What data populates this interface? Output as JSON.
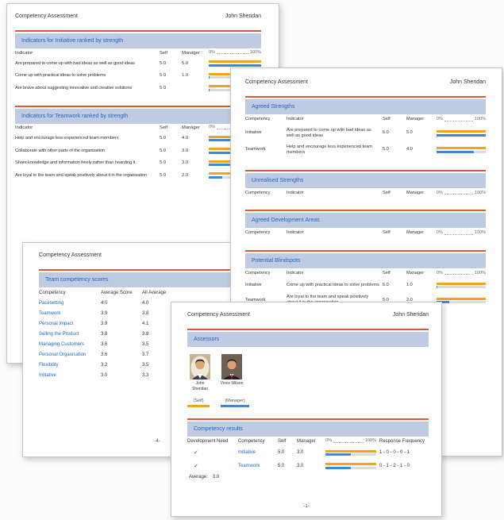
{
  "report": {
    "title": "Competency Assessment",
    "person": "John Sheridan"
  },
  "scale": {
    "left": "0%",
    "right": "100%"
  },
  "colors": {
    "self_bar": "#F6A21C",
    "manager_bar": "#3E86D8",
    "section_band_bg": "#BFCBE2",
    "section_title_text": "#2565C2",
    "section_top_rule": "#E0582E"
  },
  "pages": {
    "indicators": {
      "title": "Competency Assessment",
      "person": "John Sheridan",
      "sections": [
        {
          "title": "Indicators for Initiative ranked by strength",
          "columns": {
            "indicator": "Indicator",
            "self": "Self",
            "manager": "Manager"
          },
          "rows": [
            {
              "indicator": "Are prepared to come up with bad ideas as well as good ideas",
              "self": "5.0",
              "manager": "5.0"
            },
            {
              "indicator": "Come up with practical ideas to solve problems",
              "self": "5.0",
              "manager": "1.0"
            },
            {
              "indicator": "Are brave about suggesting innovative and creative solutions",
              "self": "5.0",
              "manager": ""
            }
          ]
        },
        {
          "title": "Indicators for Teamwork ranked by strength",
          "columns": {
            "indicator": "Indicator",
            "self": "Self",
            "manager": "Manager"
          },
          "rows": [
            {
              "indicator": "Help and encourage less experienced team members",
              "self": "5.0",
              "manager": "4.0"
            },
            {
              "indicator": "Collaborate with other parts of the organisation",
              "self": "5.0",
              "manager": "3.0"
            },
            {
              "indicator": "Share knowledge and information freely rather than hoarding it",
              "self": "5.0",
              "manager": "3.0"
            },
            {
              "indicator": "Are loyal to the team and speak positively about it in the organisation",
              "self": "5.0",
              "manager": "2.0"
            }
          ]
        }
      ]
    },
    "strengths": {
      "title": "Competency Assessment",
      "person": "John Sheridan",
      "columns": {
        "competency": "Competency",
        "indicator": "Indicator",
        "self": "Self",
        "manager": "Manager"
      },
      "sections": [
        {
          "title": "Agreed Strengths",
          "rows": [
            {
              "competency": "Initiative",
              "indicator": "Are prepared to come up with bad ideas as well as good ideas",
              "self": "5.0",
              "manager": "5.0"
            },
            {
              "competency": "Teamwork",
              "indicator": "Help and encourage less experienced team members",
              "self": "5.0",
              "manager": "4.0"
            }
          ]
        },
        {
          "title": "Unrealised Strengths",
          "rows": []
        },
        {
          "title": "Agreed Development Areas",
          "rows": []
        },
        {
          "title": "Potential Blindspots",
          "rows": [
            {
              "competency": "Initiative",
              "indicator": "Come up with practical ideas to solve problems",
              "self": "5.0",
              "manager": "1.0"
            },
            {
              "competency": "Teamwork",
              "indicator": "Are loyal to the team and speak positively about it in the organisation",
              "self": "5.0",
              "manager": "2.0"
            }
          ]
        }
      ]
    },
    "team_scores": {
      "title": "Competency Assessment",
      "section_title": "Team competency scores",
      "columns": {
        "competency": "Competency",
        "average_score": "Average Score",
        "all_average": "All Average"
      },
      "rows": [
        {
          "competency": "Pacesetting",
          "average_score": "4.0",
          "all_average": "4.0"
        },
        {
          "competency": "Teamwork",
          "average_score": "3.9",
          "all_average": "3.8"
        },
        {
          "competency": "Personal Impact",
          "average_score": "3.9",
          "all_average": "4.1"
        },
        {
          "competency": "Selling the Product",
          "average_score": "3.8",
          "all_average": "3.8"
        },
        {
          "competency": "Managing Customers",
          "average_score": "3.6",
          "all_average": "3.5"
        },
        {
          "competency": "Personal Organisation",
          "average_score": "3.6",
          "all_average": "3.7"
        },
        {
          "competency": "Flexibility",
          "average_score": "3.2",
          "all_average": "3.5"
        },
        {
          "competency": "Initiative",
          "average_score": "3.0",
          "all_average": "3.3"
        }
      ],
      "page_number": "-4-"
    },
    "results": {
      "title": "Competency Assessment",
      "person": "John Sheridan",
      "assessors_title": "Assessors",
      "assessors": [
        {
          "name": "John Sheridan"
        },
        {
          "name": "Vince Wilson"
        }
      ],
      "legend": {
        "self": "(Self)",
        "manager": "(Manager)"
      },
      "results_title": "Competency results",
      "columns": {
        "development_need": "Development Need",
        "competency": "Competency",
        "self": "Self",
        "manager": "Manager",
        "response_frequency": "Response Frequency"
      },
      "rows": [
        {
          "development_need": "✓",
          "competency": "Initiative",
          "self": "5.0",
          "manager": "3.0",
          "response_frequency": "1 - 0 - 0 - 0 - 1"
        },
        {
          "development_need": "✓",
          "competency": "Teamwork",
          "self": "5.0",
          "manager": "3.0",
          "response_frequency": "0 - 1 - 2 - 1 - 0"
        }
      ],
      "average_label": "Average:",
      "average_value": "3.0",
      "page_number": "-1-"
    }
  }
}
